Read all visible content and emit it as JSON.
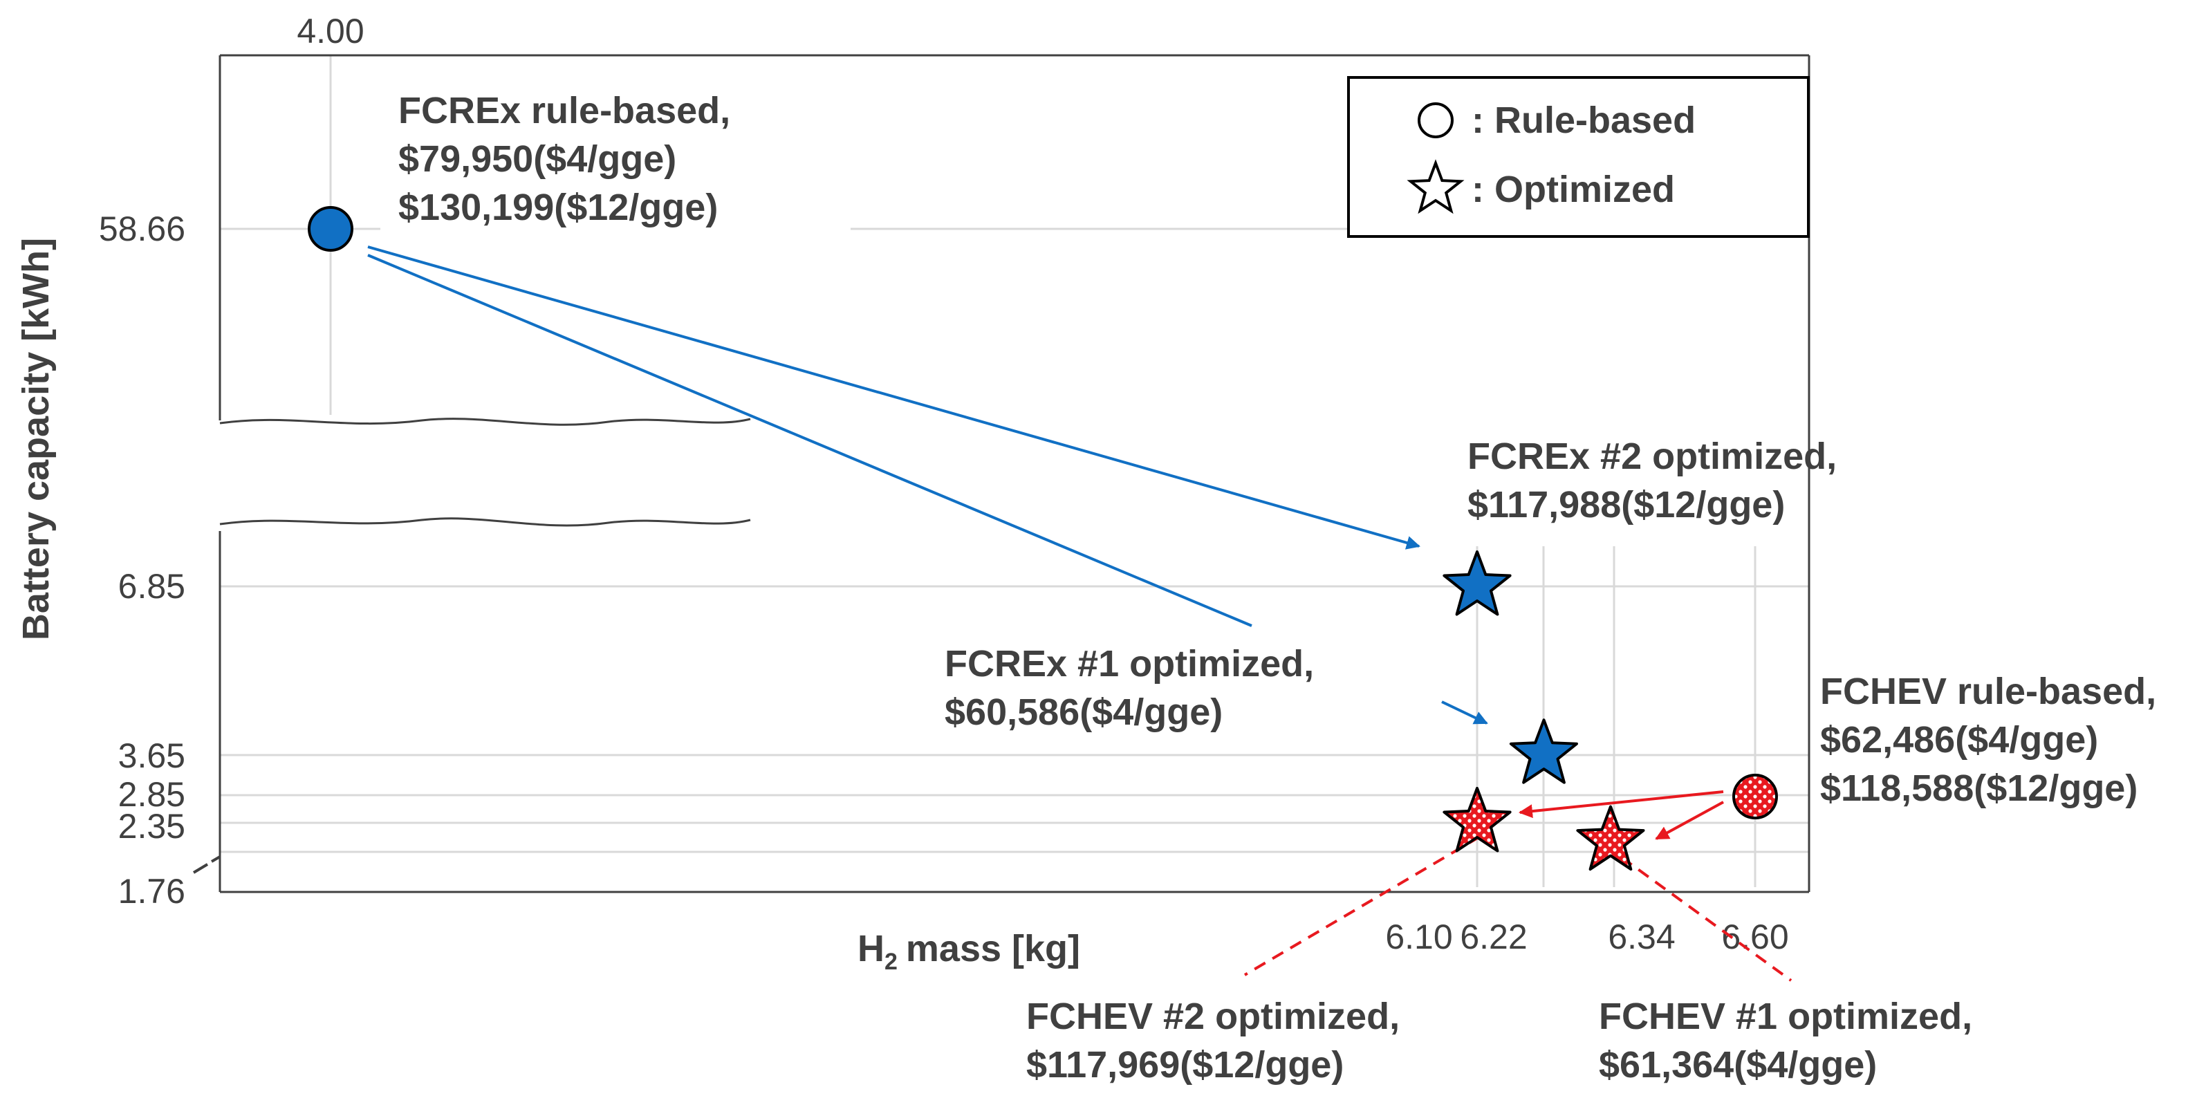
{
  "chart_data": {
    "type": "scatter",
    "xlabel": "mass [kg]",
    "xlabel_symbol": "H",
    "xlabel_subscript": "2",
    "ylabel": "Battery capacity  [kWh]",
    "x_ticks": [
      "4.00",
      "6.10",
      "6.22",
      "6.34",
      "6.60"
    ],
    "y_ticks": [
      "58.66",
      "6.85",
      "3.65",
      "2.85",
      "2.35",
      "1.76"
    ],
    "y_axis_break": true,
    "grid": true,
    "legend": {
      "placement": "top-right",
      "entries": [
        {
          "marker": "circle",
          "label": ": Rule-based"
        },
        {
          "marker": "star",
          "label": ": Optimized"
        }
      ]
    },
    "points": [
      {
        "name": "FCREx rule-based",
        "x": 4.0,
        "y": 58.66,
        "marker": "circle",
        "color": "#1170C4",
        "pattern": "solid",
        "label_lines": [
          "FCREx rule-based,",
          "$79,950($4/gge)",
          "$130,199($12/gge)"
        ]
      },
      {
        "name": "FCREx #2 optimized",
        "x": 6.1,
        "y": 6.85,
        "marker": "star",
        "color": "#1170C4",
        "pattern": "solid",
        "label_lines": [
          "FCREx #2 optimized,",
          "$117,988($12/gge)"
        ]
      },
      {
        "name": "FCREx #1 optimized",
        "x": 6.22,
        "y": 3.65,
        "marker": "star",
        "color": "#1170C4",
        "pattern": "solid",
        "label_lines": [
          "FCREx #1 optimized,",
          "$60,586($4/gge)"
        ]
      },
      {
        "name": "FCHEV rule-based",
        "x": 6.6,
        "y": 2.85,
        "marker": "circle",
        "color": "#E8191F",
        "pattern": "dotted",
        "label_lines": [
          "FCHEV rule-based,",
          "$62,486($4/gge)",
          "$118,588($12/gge)"
        ]
      },
      {
        "name": "FCHEV #2 optimized",
        "x": 6.1,
        "y": 2.35,
        "marker": "star",
        "color": "#E8191F",
        "pattern": "dotted",
        "label_lines": [
          "FCHEV #2 optimized,",
          "$117,969($12/gge)"
        ]
      },
      {
        "name": "FCHEV #1 optimized",
        "x": 6.34,
        "y": 2.0,
        "marker": "star",
        "color": "#E8191F",
        "pattern": "dotted",
        "label_lines": [
          "FCHEV #1 optimized,",
          "$61,364($4/gge)"
        ]
      }
    ],
    "colors": {
      "fcrex": "#1170C4",
      "fchev": "#E8191F"
    }
  }
}
